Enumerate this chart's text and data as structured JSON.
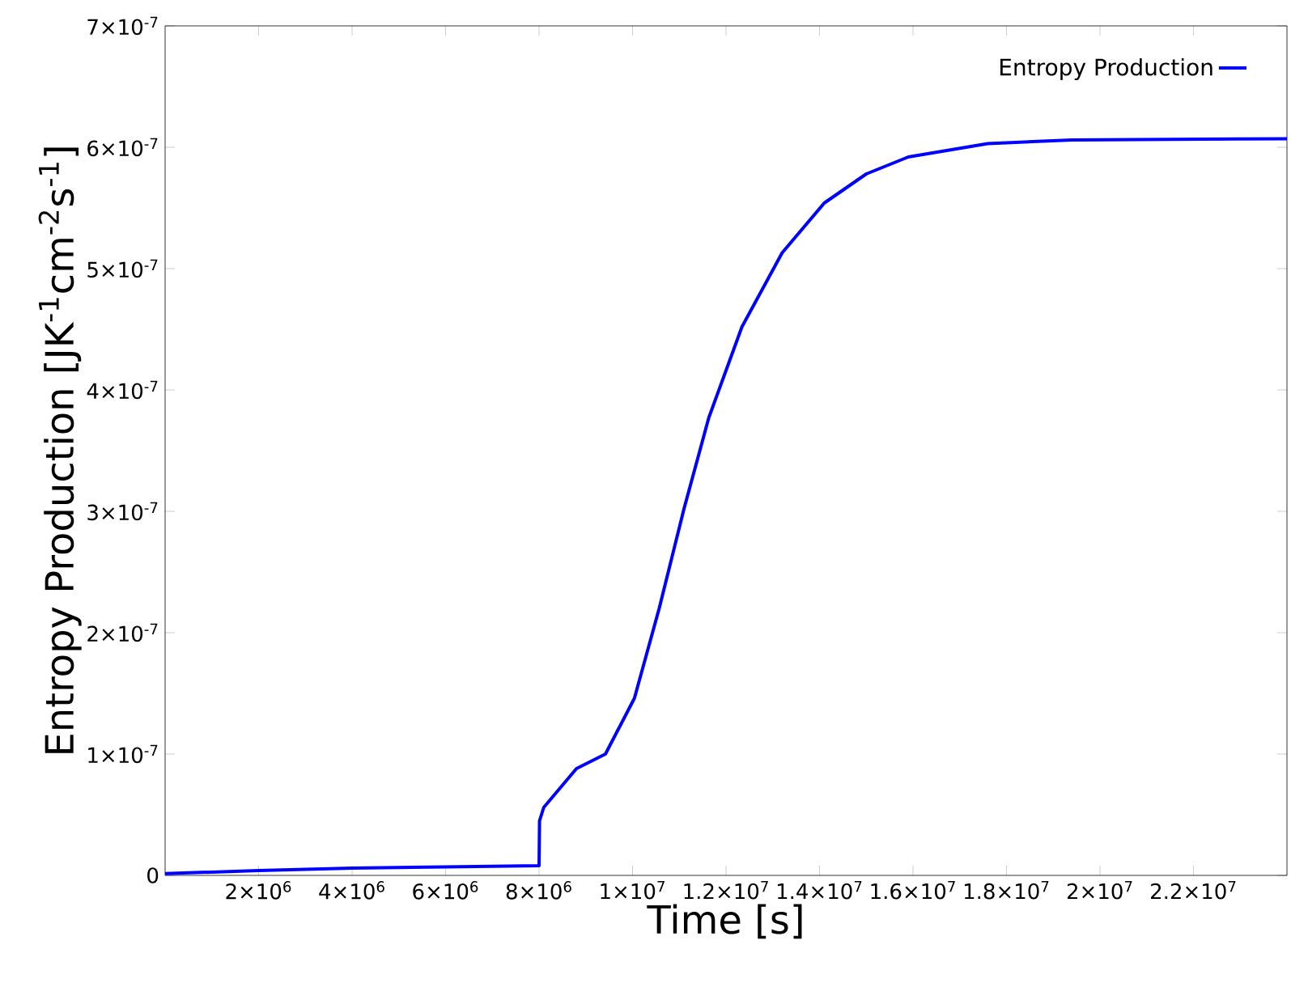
{
  "chart_data": {
    "type": "line",
    "xlabel": "Time [s]",
    "ylabel": "Entropy Production [JK$^{-1}$cm$^{-2}$s$^{-1}$]",
    "xlim": [
      0,
      24000000
    ],
    "ylim": [
      0,
      7e-07
    ],
    "xticks": [
      {
        "value": 2000000,
        "label": "2×10$^{6}$"
      },
      {
        "value": 4000000,
        "label": "4×10$^{6}$"
      },
      {
        "value": 6000000,
        "label": "6×10$^{6}$"
      },
      {
        "value": 8000000,
        "label": "8×10$^{6}$"
      },
      {
        "value": 10000000,
        "label": "1×10$^{7}$"
      },
      {
        "value": 12000000,
        "label": "1.2×10$^{7}$"
      },
      {
        "value": 14000000,
        "label": "1.4×10$^{7}$"
      },
      {
        "value": 16000000,
        "label": "1.6×10$^{7}$"
      },
      {
        "value": 18000000,
        "label": "1.8×10$^{7}$"
      },
      {
        "value": 20000000,
        "label": "2×10$^{7}$"
      },
      {
        "value": 22000000,
        "label": "2.2×10$^{7}$"
      }
    ],
    "yticks": [
      0,
      {
        "value": 1e-07,
        "label": "1×10$^{-7}$"
      },
      {
        "value": 2e-07,
        "label": "2×10$^{-7}$"
      },
      {
        "value": 3e-07,
        "label": "3×10$^{-7}$"
      },
      {
        "value": 4e-07,
        "label": "4×10$^{-7}$"
      },
      {
        "value": 5e-07,
        "label": "5×10$^{-7}$"
      },
      {
        "value": 6e-07,
        "label": "6×10$^{-7}$"
      },
      {
        "value": 7e-07,
        "label": "7×10$^{-7}$"
      }
    ],
    "legend": "top right",
    "grid": false,
    "series": [
      {
        "name": "Entropy Production",
        "color": "#0000ff",
        "x": [
          0,
          2000000,
          4000000,
          6000000,
          8000000,
          8010000,
          8100000,
          8800000,
          9420000,
          10040000,
          10570000,
          11100000,
          11630000,
          12340000,
          13200000,
          14100000,
          15000000,
          15900000,
          17600000,
          19400000,
          24000000
        ],
        "values": [
          1.5e-09,
          4e-09,
          6e-09,
          7e-09,
          8e-09,
          4.5e-08,
          5.6e-08,
          8.8e-08,
          1e-07,
          1.46e-07,
          2.2e-07,
          3.02e-07,
          3.77e-07,
          4.52e-07,
          5.13e-07,
          5.54e-07,
          5.78e-07,
          5.92e-07,
          6.03e-07,
          6.06e-07,
          6.07e-07
        ]
      }
    ]
  }
}
